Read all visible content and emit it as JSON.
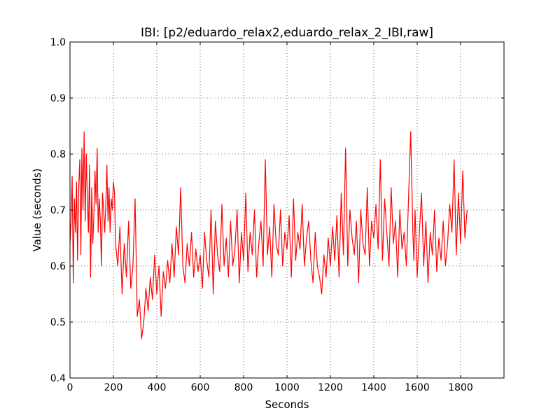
{
  "chart_data": {
    "type": "line",
    "title": "IBI: [p2/eduardo_relax2,eduardo_relax_2_IBI,raw]",
    "xlabel": "Seconds",
    "ylabel": "Value (seconds)",
    "xlim": [
      0,
      2000
    ],
    "ylim": [
      0.4,
      1.0
    ],
    "xticks": [
      0,
      200,
      400,
      600,
      800,
      1000,
      1200,
      1400,
      1600,
      1800
    ],
    "xtick_labels": [
      "0",
      "200",
      "400",
      "600",
      "800",
      "1000",
      "1200",
      "1400",
      "1600",
      "1800"
    ],
    "yticks": [
      0.4,
      0.5,
      0.6,
      0.7,
      0.8,
      0.9,
      1.0
    ],
    "ytick_labels": [
      "0.4",
      "0.5",
      "0.6",
      "0.7",
      "0.8",
      "0.9",
      "1.0"
    ],
    "grid": true,
    "line_color": "#ff0000",
    "series": [
      {
        "x": [
          0,
          5,
          10,
          15,
          20,
          25,
          30,
          35,
          40,
          45,
          50,
          55,
          60,
          65,
          70,
          75,
          80,
          85,
          90,
          95,
          100,
          105,
          110,
          115,
          120,
          125,
          130,
          135,
          140,
          145,
          150,
          155,
          160,
          165,
          170,
          175,
          180,
          185,
          190,
          195,
          200,
          205,
          210,
          220,
          230,
          240,
          250,
          260,
          270,
          280,
          290,
          300,
          310,
          320,
          330,
          340,
          350,
          360,
          370,
          380,
          390,
          400,
          410,
          420,
          430,
          440,
          450,
          460,
          470,
          480,
          490,
          500,
          510,
          520,
          530,
          540,
          550,
          560,
          570,
          580,
          590,
          600,
          610,
          620,
          630,
          640,
          650,
          660,
          670,
          680,
          690,
          700,
          710,
          720,
          730,
          740,
          750,
          760,
          770,
          780,
          790,
          800,
          810,
          820,
          830,
          840,
          850,
          860,
          870,
          880,
          890,
          900,
          910,
          920,
          930,
          940,
          950,
          960,
          970,
          980,
          990,
          1000,
          1010,
          1020,
          1030,
          1040,
          1050,
          1060,
          1070,
          1080,
          1090,
          1100,
          1110,
          1120,
          1130,
          1140,
          1150,
          1160,
          1170,
          1180,
          1190,
          1200,
          1210,
          1220,
          1230,
          1240,
          1250,
          1260,
          1270,
          1280,
          1290,
          1300,
          1310,
          1320,
          1330,
          1340,
          1350,
          1360,
          1370,
          1380,
          1390,
          1400,
          1410,
          1420,
          1430,
          1440,
          1450,
          1460,
          1470,
          1480,
          1490,
          1500,
          1510,
          1520,
          1530,
          1540,
          1550,
          1560,
          1570,
          1580,
          1585,
          1590,
          1600,
          1610,
          1620,
          1630,
          1640,
          1650,
          1660,
          1670,
          1680,
          1690,
          1700,
          1710,
          1720,
          1730,
          1740,
          1750,
          1760,
          1770,
          1780,
          1790,
          1800,
          1810,
          1820,
          1830
        ],
        "y": [
          0.64,
          0.68,
          0.76,
          0.57,
          0.72,
          0.66,
          0.75,
          0.61,
          0.74,
          0.79,
          0.62,
          0.81,
          0.7,
          0.84,
          0.68,
          0.8,
          0.72,
          0.66,
          0.78,
          0.58,
          0.74,
          0.64,
          0.69,
          0.77,
          0.71,
          0.81,
          0.66,
          0.72,
          0.68,
          0.6,
          0.73,
          0.7,
          0.66,
          0.71,
          0.78,
          0.68,
          0.74,
          0.66,
          0.72,
          0.7,
          0.75,
          0.73,
          0.64,
          0.6,
          0.67,
          0.55,
          0.64,
          0.58,
          0.68,
          0.56,
          0.6,
          0.72,
          0.51,
          0.54,
          0.47,
          0.5,
          0.56,
          0.52,
          0.58,
          0.54,
          0.62,
          0.55,
          0.6,
          0.51,
          0.59,
          0.56,
          0.61,
          0.57,
          0.64,
          0.58,
          0.67,
          0.62,
          0.74,
          0.6,
          0.57,
          0.64,
          0.6,
          0.66,
          0.58,
          0.63,
          0.59,
          0.62,
          0.56,
          0.66,
          0.61,
          0.58,
          0.7,
          0.55,
          0.68,
          0.62,
          0.59,
          0.71,
          0.6,
          0.65,
          0.58,
          0.68,
          0.6,
          0.63,
          0.7,
          0.57,
          0.66,
          0.61,
          0.73,
          0.59,
          0.66,
          0.62,
          0.7,
          0.58,
          0.64,
          0.68,
          0.6,
          0.79,
          0.62,
          0.67,
          0.58,
          0.71,
          0.64,
          0.62,
          0.7,
          0.6,
          0.66,
          0.63,
          0.69,
          0.58,
          0.72,
          0.61,
          0.66,
          0.63,
          0.71,
          0.6,
          0.65,
          0.68,
          0.61,
          0.57,
          0.66,
          0.6,
          0.58,
          0.55,
          0.62,
          0.58,
          0.65,
          0.6,
          0.67,
          0.61,
          0.69,
          0.58,
          0.73,
          0.62,
          0.81,
          0.6,
          0.7,
          0.65,
          0.62,
          0.68,
          0.57,
          0.7,
          0.64,
          0.62,
          0.74,
          0.6,
          0.68,
          0.65,
          0.71,
          0.63,
          0.79,
          0.61,
          0.72,
          0.66,
          0.6,
          0.74,
          0.64,
          0.68,
          0.58,
          0.7,
          0.63,
          0.66,
          0.6,
          0.72,
          0.84,
          0.66,
          0.61,
          0.7,
          0.58,
          0.66,
          0.73,
          0.6,
          0.68,
          0.57,
          0.66,
          0.62,
          0.7,
          0.59,
          0.65,
          0.61,
          0.68,
          0.6,
          0.64,
          0.71,
          0.66,
          0.79,
          0.62,
          0.73,
          0.64,
          0.77,
          0.65,
          0.7
        ]
      }
    ]
  }
}
